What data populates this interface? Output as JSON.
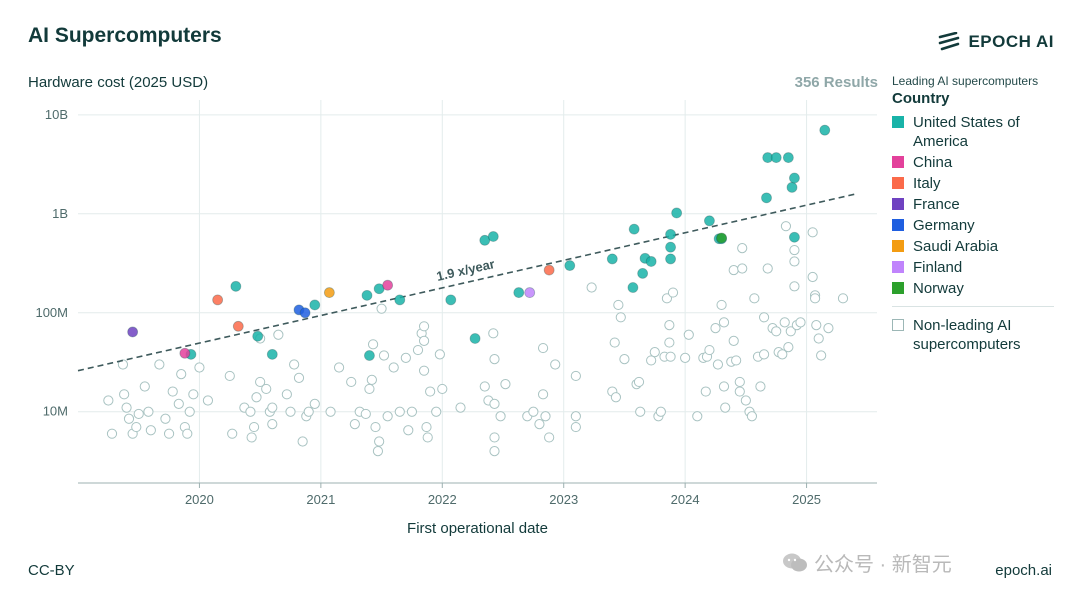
{
  "header": {
    "title": "AI Supercomputers",
    "brand": "EPOCH AI",
    "y_axis_title": "Hardware cost (2025 USD)",
    "results": "356 Results"
  },
  "legend": {
    "caption": "Leading AI supercomputers",
    "title": "Country",
    "items": [
      {
        "label": "United States of America",
        "color": "#19b3a8"
      },
      {
        "label": "China",
        "color": "#e3419b"
      },
      {
        "label": "Italy",
        "color": "#fb6a4a"
      },
      {
        "label": "France",
        "color": "#6f42c1"
      },
      {
        "label": "Germany",
        "color": "#1f5fe0"
      },
      {
        "label": "Saudi Arabia",
        "color": "#f39c12"
      },
      {
        "label": "Finland",
        "color": "#c084fc"
      },
      {
        "label": "Norway",
        "color": "#2ca02c"
      }
    ],
    "nonleading_label": "Non-leading AI supercomputers"
  },
  "footer": {
    "license": "CC-BY",
    "site": "epoch.ai",
    "watermark": "公众号 · 新智元"
  },
  "chart_data": {
    "type": "scatter",
    "xlabel": "First operational date",
    "ylabel": "Hardware cost (2025 USD)",
    "y_scale": "log",
    "xlim": [
      2019.0,
      2025.58
    ],
    "ylim_log10": [
      6.28,
      10.15
    ],
    "x_ticks": [
      2020,
      2021,
      2022,
      2023,
      2024,
      2025
    ],
    "x_tick_labels": [
      "2020",
      "2021",
      "2022",
      "2023",
      "2024",
      "2025"
    ],
    "y_ticks": [
      10000000,
      100000000,
      1000000000,
      10000000000
    ],
    "y_tick_labels": [
      "10M",
      "100M",
      "1B",
      "10B"
    ],
    "grid": true,
    "trend": {
      "label": "1.9 x/year",
      "x0": 2019.0,
      "y0": 26000000,
      "growth_per_year": 1.9
    },
    "series": [
      {
        "name": "United States of America",
        "color": "#19b3a8",
        "points": [
          [
            2019.93,
            38000000
          ],
          [
            2020.3,
            185000000
          ],
          [
            2020.48,
            58000000
          ],
          [
            2020.6,
            38000000
          ],
          [
            2020.95,
            120000000
          ],
          [
            2021.38,
            150000000
          ],
          [
            2021.48,
            175000000
          ],
          [
            2021.4,
            37000000
          ],
          [
            2021.65,
            135000000
          ],
          [
            2022.07,
            135000000
          ],
          [
            2022.27,
            55000000
          ],
          [
            2022.35,
            540000000
          ],
          [
            2022.42,
            590000000
          ],
          [
            2022.63,
            160000000
          ],
          [
            2023.05,
            300000000
          ],
          [
            2023.4,
            350000000
          ],
          [
            2023.57,
            180000000
          ],
          [
            2023.58,
            700000000
          ],
          [
            2023.65,
            250000000
          ],
          [
            2023.67,
            355000000
          ],
          [
            2023.72,
            330000000
          ],
          [
            2023.88,
            350000000
          ],
          [
            2023.88,
            460000000
          ],
          [
            2023.88,
            620000000
          ],
          [
            2023.93,
            1020000000
          ],
          [
            2024.2,
            850000000
          ],
          [
            2024.28,
            560000000
          ],
          [
            2024.3,
            560000000
          ],
          [
            2024.67,
            1450000000
          ],
          [
            2024.68,
            3700000000
          ],
          [
            2024.75,
            3700000000
          ],
          [
            2024.85,
            3700000000
          ],
          [
            2024.88,
            1850000000
          ],
          [
            2024.9,
            2300000000
          ],
          [
            2024.9,
            580000000
          ],
          [
            2025.15,
            7000000000
          ]
        ]
      },
      {
        "name": "China",
        "color": "#e3419b",
        "points": [
          [
            2019.88,
            39000000
          ],
          [
            2021.55,
            190000000
          ]
        ]
      },
      {
        "name": "Italy",
        "color": "#fb6a4a",
        "points": [
          [
            2020.15,
            135000000
          ],
          [
            2020.32,
            73000000
          ],
          [
            2022.88,
            270000000
          ]
        ]
      },
      {
        "name": "France",
        "color": "#6f42c1",
        "points": [
          [
            2019.45,
            64000000
          ]
        ]
      },
      {
        "name": "Germany",
        "color": "#1f5fe0",
        "points": [
          [
            2020.82,
            107000000
          ],
          [
            2020.87,
            100000000
          ]
        ]
      },
      {
        "name": "Saudi Arabia",
        "color": "#f39c12",
        "points": [
          [
            2021.07,
            160000000
          ]
        ]
      },
      {
        "name": "Finland",
        "color": "#c084fc",
        "points": [
          [
            2022.72,
            160000000
          ]
        ]
      },
      {
        "name": "Norway",
        "color": "#2ca02c",
        "points": [
          [
            2024.3,
            570000000
          ]
        ]
      }
    ],
    "non_leading": [
      [
        2019.25,
        13000000
      ],
      [
        2019.28,
        6000000
      ],
      [
        2019.37,
        30000000
      ],
      [
        2019.38,
        15000000
      ],
      [
        2019.4,
        11000000
      ],
      [
        2019.42,
        8500000
      ],
      [
        2019.45,
        6000000
      ],
      [
        2019.48,
        7000000
      ],
      [
        2019.5,
        9500000
      ],
      [
        2019.55,
        18000000
      ],
      [
        2019.58,
        10000000
      ],
      [
        2019.6,
        6500000
      ],
      [
        2019.67,
        30000000
      ],
      [
        2019.72,
        8500000
      ],
      [
        2019.75,
        6000000
      ],
      [
        2019.78,
        16000000
      ],
      [
        2019.83,
        12000000
      ],
      [
        2019.85,
        24000000
      ],
      [
        2019.88,
        7000000
      ],
      [
        2019.9,
        6000000
      ],
      [
        2019.92,
        10000000
      ],
      [
        2019.95,
        15000000
      ],
      [
        2020.0,
        28000000
      ],
      [
        2020.07,
        13000000
      ],
      [
        2020.25,
        23000000
      ],
      [
        2020.27,
        6000000
      ],
      [
        2020.37,
        11000000
      ],
      [
        2020.42,
        10000000
      ],
      [
        2020.43,
        5500000
      ],
      [
        2020.45,
        7000000
      ],
      [
        2020.47,
        14000000
      ],
      [
        2020.5,
        55000000
      ],
      [
        2020.5,
        20000000
      ],
      [
        2020.55,
        17000000
      ],
      [
        2020.58,
        10000000
      ],
      [
        2020.6,
        7500000
      ],
      [
        2020.6,
        11000000
      ],
      [
        2020.65,
        60000000
      ],
      [
        2020.72,
        15000000
      ],
      [
        2020.75,
        10000000
      ],
      [
        2020.78,
        30000000
      ],
      [
        2020.82,
        22000000
      ],
      [
        2020.85,
        5000000
      ],
      [
        2020.88,
        9000000
      ],
      [
        2020.9,
        10000000
      ],
      [
        2020.95,
        12000000
      ],
      [
        2021.08,
        10000000
      ],
      [
        2021.15,
        28000000
      ],
      [
        2021.25,
        20000000
      ],
      [
        2021.28,
        7500000
      ],
      [
        2021.32,
        10000000
      ],
      [
        2021.37,
        9500000
      ],
      [
        2021.4,
        17000000
      ],
      [
        2021.42,
        21000000
      ],
      [
        2021.43,
        48000000
      ],
      [
        2021.45,
        7000000
      ],
      [
        2021.47,
        4000000
      ],
      [
        2021.48,
        5000000
      ],
      [
        2021.5,
        110000000
      ],
      [
        2021.52,
        37000000
      ],
      [
        2021.55,
        9000000
      ],
      [
        2021.6,
        28000000
      ],
      [
        2021.65,
        10000000
      ],
      [
        2021.7,
        35000000
      ],
      [
        2021.72,
        6500000
      ],
      [
        2021.75,
        10000000
      ],
      [
        2021.8,
        42000000
      ],
      [
        2021.83,
        62000000
      ],
      [
        2021.85,
        73000000
      ],
      [
        2021.85,
        52000000
      ],
      [
        2021.85,
        26000000
      ],
      [
        2021.87,
        7000000
      ],
      [
        2021.88,
        5500000
      ],
      [
        2021.9,
        16000000
      ],
      [
        2021.95,
        10000000
      ],
      [
        2021.98,
        38000000
      ],
      [
        2022.0,
        17000000
      ],
      [
        2022.15,
        11000000
      ],
      [
        2022.35,
        18000000
      ],
      [
        2022.38,
        13000000
      ],
      [
        2022.42,
        62000000
      ],
      [
        2022.43,
        34000000
      ],
      [
        2022.43,
        12000000
      ],
      [
        2022.43,
        5500000
      ],
      [
        2022.43,
        4000000
      ],
      [
        2022.48,
        9000000
      ],
      [
        2022.52,
        19000000
      ],
      [
        2022.7,
        9000000
      ],
      [
        2022.75,
        10000000
      ],
      [
        2022.8,
        7500000
      ],
      [
        2022.83,
        44000000
      ],
      [
        2022.83,
        15000000
      ],
      [
        2022.85,
        9000000
      ],
      [
        2022.88,
        5500000
      ],
      [
        2022.93,
        30000000
      ],
      [
        2023.1,
        23000000
      ],
      [
        2023.1,
        9000000
      ],
      [
        2023.1,
        7000000
      ],
      [
        2023.23,
        180000000
      ],
      [
        2023.4,
        16000000
      ],
      [
        2023.42,
        50000000
      ],
      [
        2023.43,
        14000000
      ],
      [
        2023.45,
        120000000
      ],
      [
        2023.47,
        90000000
      ],
      [
        2023.5,
        34000000
      ],
      [
        2023.6,
        19000000
      ],
      [
        2023.62,
        20000000
      ],
      [
        2023.63,
        10000000
      ],
      [
        2023.72,
        33000000
      ],
      [
        2023.75,
        40000000
      ],
      [
        2023.78,
        9000000
      ],
      [
        2023.8,
        10000000
      ],
      [
        2023.83,
        36000000
      ],
      [
        2023.85,
        140000000
      ],
      [
        2023.87,
        75000000
      ],
      [
        2023.87,
        50000000
      ],
      [
        2023.88,
        36000000
      ],
      [
        2023.9,
        160000000
      ],
      [
        2024.0,
        35000000
      ],
      [
        2024.03,
        60000000
      ],
      [
        2024.1,
        9000000
      ],
      [
        2024.15,
        35000000
      ],
      [
        2024.17,
        16000000
      ],
      [
        2024.18,
        36000000
      ],
      [
        2024.2,
        42000000
      ],
      [
        2024.25,
        70000000
      ],
      [
        2024.27,
        30000000
      ],
      [
        2024.3,
        120000000
      ],
      [
        2024.32,
        80000000
      ],
      [
        2024.32,
        18000000
      ],
      [
        2024.33,
        11000000
      ],
      [
        2024.38,
        32000000
      ],
      [
        2024.4,
        52000000
      ],
      [
        2024.4,
        270000000
      ],
      [
        2024.42,
        33000000
      ],
      [
        2024.45,
        20000000
      ],
      [
        2024.45,
        16000000
      ],
      [
        2024.47,
        450000000
      ],
      [
        2024.47,
        280000000
      ],
      [
        2024.5,
        13000000
      ],
      [
        2024.53,
        10000000
      ],
      [
        2024.55,
        9000000
      ],
      [
        2024.57,
        140000000
      ],
      [
        2024.6,
        36000000
      ],
      [
        2024.62,
        18000000
      ],
      [
        2024.65,
        90000000
      ],
      [
        2024.65,
        38000000
      ],
      [
        2024.68,
        280000000
      ],
      [
        2024.72,
        70000000
      ],
      [
        2024.75,
        65000000
      ],
      [
        2024.77,
        40000000
      ],
      [
        2024.8,
        38000000
      ],
      [
        2024.82,
        80000000
      ],
      [
        2024.83,
        750000000
      ],
      [
        2024.85,
        45000000
      ],
      [
        2024.87,
        65000000
      ],
      [
        2024.9,
        430000000
      ],
      [
        2024.9,
        330000000
      ],
      [
        2024.9,
        185000000
      ],
      [
        2024.92,
        75000000
      ],
      [
        2024.95,
        80000000
      ],
      [
        2025.05,
        650000000
      ],
      [
        2025.05,
        230000000
      ],
      [
        2025.07,
        150000000
      ],
      [
        2025.07,
        140000000
      ],
      [
        2025.08,
        75000000
      ],
      [
        2025.1,
        55000000
      ],
      [
        2025.12,
        37000000
      ],
      [
        2025.18,
        70000000
      ],
      [
        2025.3,
        140000000
      ]
    ]
  }
}
